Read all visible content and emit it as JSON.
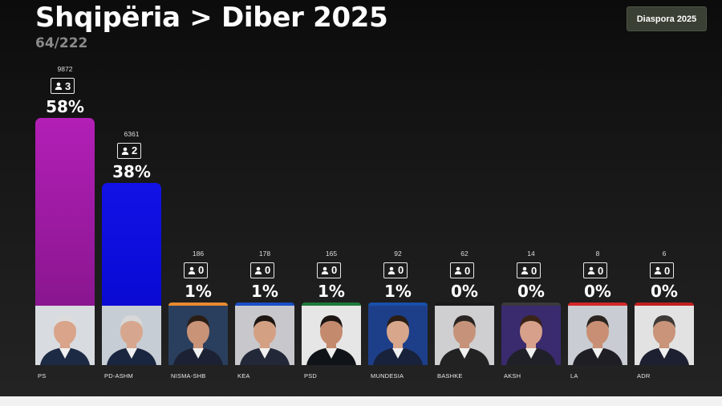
{
  "header": {
    "title": "Shqipëria > Diber 2025",
    "subtitle": "64/222",
    "diaspora_button": "Diaspora 2025"
  },
  "chart_data": {
    "type": "bar",
    "categories": [
      "PS",
      "PD-ASHM",
      "NISMA-SHB",
      "KEA",
      "PSD",
      "MUNDESIA",
      "BASHKE",
      "AKSH",
      "LA",
      "ADR"
    ],
    "votes": [
      9872,
      6361,
      186,
      178,
      165,
      92,
      62,
      14,
      8,
      6
    ],
    "seats": [
      3,
      2,
      0,
      0,
      0,
      0,
      0,
      0,
      0,
      0
    ],
    "percent_labels": [
      "58%",
      "38%",
      "1%",
      "1%",
      "1%",
      "1%",
      "0%",
      "0%",
      "0%",
      "0%"
    ],
    "values": [
      58,
      38,
      1,
      1,
      1,
      1,
      0,
      0,
      0,
      0
    ],
    "colors": [
      "#b21fb6",
      "#1212e6",
      "#e88a30",
      "#1a4fc7",
      "#1d7a3a",
      "#1750a8",
      "#1a1a1a",
      "#3a3a3a",
      "#d22727",
      "#c21f1f"
    ],
    "photo_bg": [
      "#d8dbe0",
      "#c7cdd4",
      "#2a3f5e",
      "#c8c8cc",
      "#e6e6e6",
      "#1d3f8a",
      "#cfcfd1",
      "#3a2a6e",
      "#c9ccd2",
      "#e2e2e2"
    ],
    "ylim": [
      0,
      60
    ]
  }
}
